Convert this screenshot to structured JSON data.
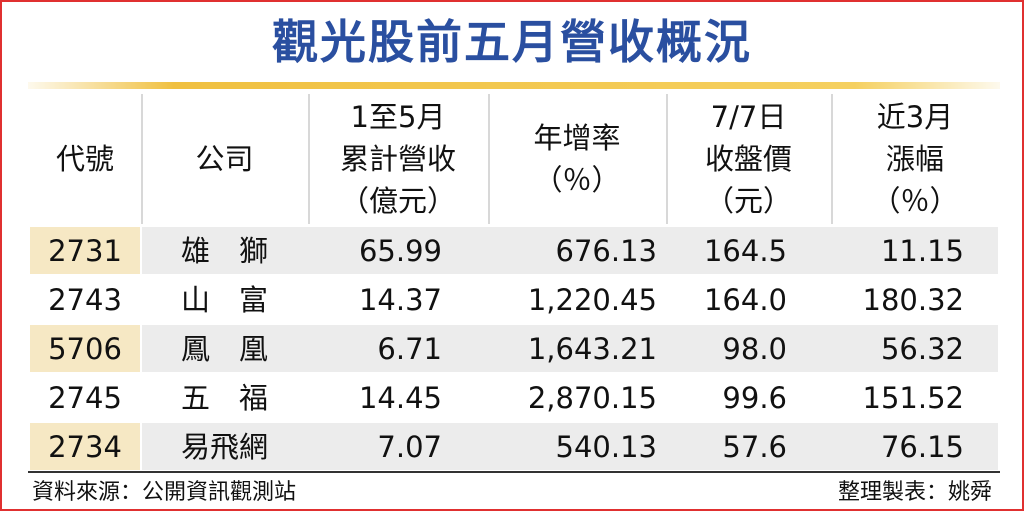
{
  "title": "觀光股前五月營收概況",
  "table": {
    "headers": [
      [
        "代號"
      ],
      [
        "公司"
      ],
      [
        "1至5月",
        "累計營收",
        "（億元）"
      ],
      [
        "年增率",
        "（％）"
      ],
      [
        "7/7日",
        "收盤價",
        "（元）"
      ],
      [
        "近3月",
        "漲幅",
        "（％）"
      ]
    ],
    "rows": [
      [
        "2731",
        "雄　獅",
        "65.99",
        "676.13",
        "164.5",
        "11.15"
      ],
      [
        "2743",
        "山　富",
        "14.37",
        "1,220.45",
        "164.0",
        "180.32"
      ],
      [
        "5706",
        "鳳　凰",
        "6.71",
        "1,643.21",
        "98.0",
        "56.32"
      ],
      [
        "2745",
        "五　福",
        "14.45",
        "2,870.15",
        "99.6",
        "151.52"
      ],
      [
        "2734",
        "易飛網",
        "7.07",
        "540.13",
        "57.6",
        "76.15"
      ]
    ]
  },
  "footer": {
    "source": "資料來源：公開資訊觀測站",
    "credit": "整理製表：姚舜"
  }
}
